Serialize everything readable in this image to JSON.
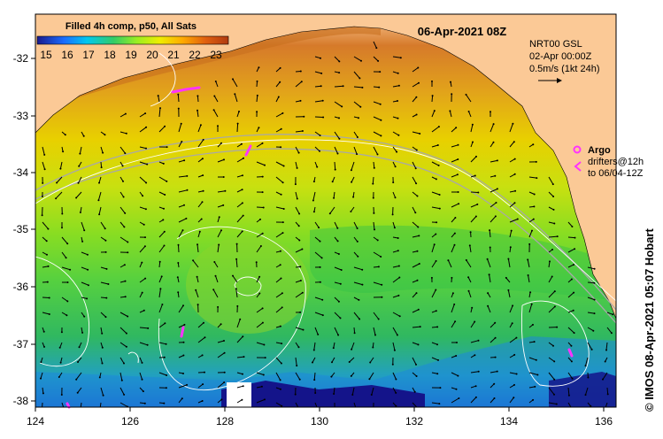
{
  "map": {
    "datetime": "06-Apr-2021 08Z",
    "credit": "© IMOS 08-Apr-2021 05:07 Hobart",
    "lon_ticks": [
      "124",
      "126",
      "128",
      "130",
      "132",
      "134",
      "136"
    ],
    "lat_ticks": [
      "-32",
      "-33",
      "-34",
      "-35",
      "-36",
      "-37",
      "-38"
    ],
    "lon_range": [
      124,
      136.6
    ],
    "lat_range": [
      -38.1,
      -31.4
    ],
    "colors": {
      "land": "#fbc996",
      "argo": "#ff33ff",
      "contour": "#ffffff",
      "isobath": "#a8a8a8"
    }
  },
  "legend": {
    "title": "Filled 4h comp, p50, All Sats",
    "colorbar_labels": [
      "15",
      "16",
      "17",
      "18",
      "19",
      "20",
      "21",
      "22",
      "23"
    ],
    "colorbar_stops": [
      "#1a1a8c",
      "#1a6cff",
      "#00c8f0",
      "#33cc66",
      "#99ee22",
      "#eeee00",
      "#ffaa00",
      "#e06010",
      "#b03a10"
    ]
  },
  "current_panel": {
    "line1": "NRT00 GSL",
    "line2": "02-Apr 00:00Z",
    "line3": "0.5m/s (1kt 24h)"
  },
  "argo_panel": {
    "label": "Argo",
    "line1": "drifters@12h",
    "line2": "to 06/04-12Z"
  }
}
